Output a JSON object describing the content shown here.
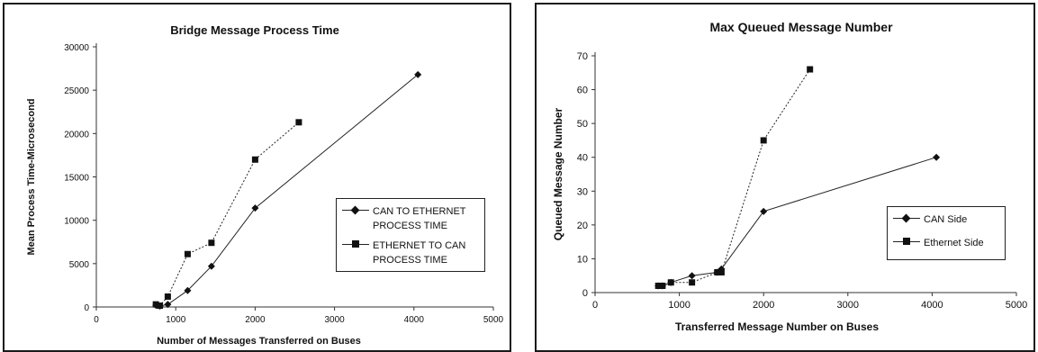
{
  "chart_data": [
    {
      "type": "line",
      "title": "Bridge Message Process Time",
      "xlabel": "Number of Messages Transferred on Buses",
      "ylabel": "Mean Process Time-Microsecond",
      "xlim": [
        0,
        5000
      ],
      "ylim": [
        0,
        30000
      ],
      "xticks": [
        "0",
        "1000",
        "2000",
        "3000",
        "4000",
        "5000"
      ],
      "yticks": [
        "0",
        "5000",
        "10000",
        "15000",
        "20000",
        "25000",
        "30000"
      ],
      "grid": false,
      "legend_position": "right",
      "series": [
        {
          "name_lines": [
            "CAN TO ETHERNET",
            "PROCESS TIME"
          ],
          "marker": "diamond",
          "line_style": "solid",
          "x": [
            750,
            800,
            900,
            1150,
            1450,
            2000,
            4050
          ],
          "y": [
            200,
            100,
            300,
            1900,
            4700,
            11400,
            26800
          ]
        },
        {
          "name_lines": [
            "ETHERNET TO CAN",
            "PROCESS TIME"
          ],
          "marker": "square",
          "line_style": "dashed",
          "x": [
            750,
            800,
            900,
            1150,
            1450,
            2000,
            2550
          ],
          "y": [
            300,
            150,
            1200,
            6100,
            7400,
            17000,
            21300
          ]
        }
      ]
    },
    {
      "type": "line",
      "title": "Max Queued Message Number",
      "xlabel": "Transferred Message Number on Buses",
      "ylabel": "Queued Message Number",
      "xlim": [
        0,
        5000
      ],
      "ylim": [
        0,
        70
      ],
      "xticks": [
        "0",
        "1000",
        "2000",
        "3000",
        "4000",
        "5000"
      ],
      "yticks": [
        "0",
        "10",
        "20",
        "30",
        "40",
        "50",
        "60",
        "70"
      ],
      "grid": false,
      "legend_position": "right",
      "series": [
        {
          "name_lines": [
            "CAN Side"
          ],
          "marker": "diamond",
          "line_style": "solid",
          "x": [
            750,
            800,
            900,
            1150,
            1450,
            1500,
            2000,
            4050
          ],
          "y": [
            2,
            2,
            3,
            5,
            6,
            7,
            24,
            40
          ]
        },
        {
          "name_lines": [
            "Ethernet Side"
          ],
          "marker": "square",
          "line_style": "dashed",
          "x": [
            750,
            800,
            900,
            1150,
            1450,
            1500,
            2000,
            2550
          ],
          "y": [
            2,
            2,
            3,
            3,
            6,
            6,
            45,
            66
          ]
        }
      ]
    }
  ]
}
